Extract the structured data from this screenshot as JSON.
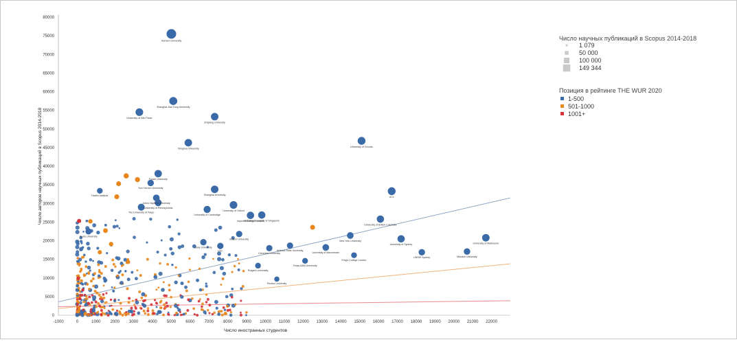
{
  "chart_data": {
    "type": "scatter",
    "xlabel": "Число иностранных студентов",
    "ylabel": "Число авторов научных публикаций в Scopus 2014-2018",
    "xlim": [
      -1000,
      23000
    ],
    "ylim": [
      0,
      80000
    ],
    "x_ticks": [
      "-1000",
      "0",
      "1000",
      "2000",
      "3000",
      "4000",
      "5000",
      "6000",
      "7000",
      "8000",
      "9000",
      "10000",
      "11000",
      "12000",
      "13000",
      "14000",
      "15000",
      "16000",
      "17000",
      "18000",
      "19000",
      "20000",
      "21000",
      "22000"
    ],
    "y_ticks": [
      "0",
      "5000",
      "10000",
      "15000",
      "20000",
      "25000",
      "30000",
      "35000",
      "40000",
      "45000",
      "50000",
      "55000",
      "60000",
      "65000",
      "70000",
      "75000",
      "80000"
    ],
    "size_legend": {
      "title": "Число научных публикаций в Scopus 2014-2018",
      "items": [
        "1 079",
        "50 000",
        "100 000",
        "149 344"
      ]
    },
    "color_legend": {
      "title": "Позиция в рейтинге THE WUR 2020",
      "items": [
        {
          "label": "1-500",
          "color": "#3b6aa8"
        },
        {
          "label": "501-1000",
          "color": "#e8871e"
        },
        {
          "label": "1001+",
          "color": "#d6323a"
        }
      ]
    },
    "trendlines": [
      {
        "group": "1-500",
        "color": "#8fa6c8",
        "from": [
          -1000,
          3600
        ],
        "to": [
          23000,
          31500
        ]
      },
      {
        "group": "501-1000",
        "color": "#f2b27a",
        "from": [
          -1000,
          1800
        ],
        "to": [
          23000,
          13800
        ]
      },
      {
        "group": "1001+",
        "color": "#ea8a8f",
        "from": [
          -1000,
          2300
        ],
        "to": [
          23000,
          3900
        ]
      }
    ],
    "series": [
      {
        "name": "1-500",
        "color": "#3b6aa8",
        "points": [
          {
            "x": 5000,
            "y": 75500,
            "s": 149344,
            "label": "Harvard University"
          },
          {
            "x": 5100,
            "y": 57500,
            "s": 95000,
            "label": "Shanghai Jiao Tong University"
          },
          {
            "x": 3300,
            "y": 54500,
            "s": 85000,
            "label": "University of São Paulo"
          },
          {
            "x": 7300,
            "y": 53300,
            "s": 80000,
            "label": "Zhejiang University"
          },
          {
            "x": 5900,
            "y": 46300,
            "s": 80000,
            "label": "Tsinghua University"
          },
          {
            "x": 15100,
            "y": 46800,
            "s": 90000,
            "label": "University of Toronto"
          },
          {
            "x": 4300,
            "y": 38000,
            "s": 78000,
            "label": "Fudan University"
          },
          {
            "x": 3900,
            "y": 35500,
            "s": 55000,
            "label": "Sun Yat-sen University"
          },
          {
            "x": 7300,
            "y": 33800,
            "s": 80000,
            "label": "Shanghai University"
          },
          {
            "x": 16700,
            "y": 33300,
            "s": 90000,
            "label": "UCL"
          },
          {
            "x": 4200,
            "y": 31500,
            "s": 60000,
            "label": "Johns Hopkins University"
          },
          {
            "x": 3400,
            "y": 29000,
            "s": 65000,
            "label": "The University of Tokyo"
          },
          {
            "x": 4300,
            "y": 30200,
            "s": 65000,
            "label": "University of Pennsylvania"
          },
          {
            "x": 8300,
            "y": 29600,
            "s": 85000,
            "label": "University of Oxford"
          },
          {
            "x": 9200,
            "y": 26800,
            "s": 75000,
            "label": "Imperial College London"
          },
          {
            "x": 9800,
            "y": 26900,
            "s": 75000,
            "label": "National University of Singapore"
          },
          {
            "x": 6900,
            "y": 28400,
            "s": 70000,
            "label": "University of Cambridge"
          },
          {
            "x": 16100,
            "y": 25800,
            "s": 75000,
            "label": "University of British Columbia"
          },
          {
            "x": 17200,
            "y": 20500,
            "s": 75000,
            "label": "University of Sydney"
          },
          {
            "x": 21700,
            "y": 20800,
            "s": 80000,
            "label": "University of Melbourne"
          },
          {
            "x": 14500,
            "y": 21400,
            "s": 60000,
            "label": "New York University"
          },
          {
            "x": 13200,
            "y": 18200,
            "s": 60000,
            "label": "University of Manchester"
          },
          {
            "x": 18300,
            "y": 16900,
            "s": 55000,
            "label": "UNSW Sydney"
          },
          {
            "x": 20700,
            "y": 17100,
            "s": 55000,
            "label": "Monash University"
          },
          {
            "x": 10200,
            "y": 18000,
            "s": 50000,
            "label": "Columbia University"
          },
          {
            "x": 11300,
            "y": 18700,
            "s": 50000,
            "label": "Arizona State University"
          },
          {
            "x": 6700,
            "y": 19600,
            "s": 52000,
            "label": "Duke University"
          },
          {
            "x": 7600,
            "y": 18600,
            "s": 52000,
            "label": "USC"
          },
          {
            "x": 8600,
            "y": 21800,
            "s": 52000,
            "label": "Boston University"
          },
          {
            "x": 600,
            "y": 22500,
            "s": 48000,
            "label": "Kyoto University"
          },
          {
            "x": 1200,
            "y": 33400,
            "s": 40000,
            "label": "Harbin Institute"
          },
          {
            "x": 9600,
            "y": 13300,
            "s": 40000,
            "label": "Rutgers University"
          },
          {
            "x": 12100,
            "y": 14600,
            "s": 40000,
            "label": "Texas A&M University"
          },
          {
            "x": 14700,
            "y": 16100,
            "s": 40000,
            "label": "King's College London"
          },
          {
            "x": 10600,
            "y": 9700,
            "s": 30000,
            "label": "Purdue University"
          }
        ]
      },
      {
        "name": "501-1000",
        "color": "#e8871e",
        "points": [
          {
            "x": 2600,
            "y": 37400,
            "s": 30000,
            "label": ""
          },
          {
            "x": 3200,
            "y": 36400,
            "s": 28000,
            "label": ""
          },
          {
            "x": 2200,
            "y": 35300,
            "s": 25000,
            "label": ""
          },
          {
            "x": 2100,
            "y": 31800,
            "s": 25000,
            "label": ""
          },
          {
            "x": 12500,
            "y": 23600,
            "s": 25000,
            "label": ""
          },
          {
            "x": 1500,
            "y": 22700,
            "s": 22000,
            "label": ""
          },
          {
            "x": 700,
            "y": 25200,
            "s": 18000,
            "label": ""
          },
          {
            "x": 1800,
            "y": 19100,
            "s": 18000,
            "label": ""
          },
          {
            "x": 2700,
            "y": 14300,
            "s": 15000,
            "label": ""
          },
          {
            "x": 1200,
            "y": 16900,
            "s": 15000,
            "label": ""
          }
        ]
      },
      {
        "name": "1001+",
        "color": "#d6323a",
        "points": [
          {
            "x": 100,
            "y": 25300,
            "s": 15000,
            "label": ""
          },
          {
            "x": 50,
            "y": 9900,
            "s": 8000,
            "label": ""
          },
          {
            "x": 300,
            "y": 6800,
            "s": 5000,
            "label": ""
          },
          {
            "x": 150,
            "y": 4400,
            "s": 4000,
            "label": ""
          },
          {
            "x": 600,
            "y": 3200,
            "s": 4000,
            "label": ""
          }
        ]
      }
    ]
  }
}
